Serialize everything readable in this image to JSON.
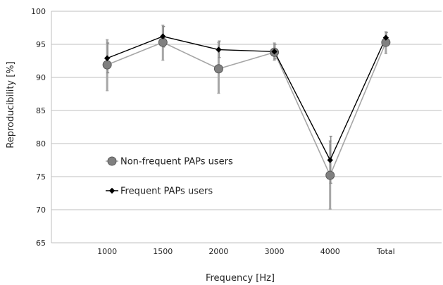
{
  "chart_data": {
    "type": "line",
    "xlabel": "Frequency [Hz]",
    "ylabel": "Reproducibility  [%]",
    "ylim": [
      65,
      100
    ],
    "yticks": [
      65,
      70,
      75,
      80,
      85,
      90,
      95,
      100
    ],
    "categories": [
      "1000",
      "1500",
      "2000",
      "3000",
      "4000",
      "Total"
    ],
    "grid": "horizontal",
    "legend_position": "left-middle",
    "series": [
      {
        "name": "Non-frequent PAPs users",
        "values": [
          91.9,
          95.3,
          91.3,
          93.8,
          75.2,
          95.3
        ],
        "err_low": [
          88.0,
          92.6,
          87.6,
          92.6,
          70.1,
          93.6
        ],
        "err_high": [
          95.7,
          97.9,
          95.3,
          95.2,
          80.4,
          96.9
        ],
        "color": "#a6a6a6",
        "marker": "circle"
      },
      {
        "name": "Frequent PAPs users",
        "values": [
          92.9,
          96.2,
          94.2,
          93.9,
          77.5,
          96.0
        ],
        "err_low": [
          90.7,
          94.6,
          93.0,
          92.8,
          74.0,
          95.1
        ],
        "err_high": [
          95.2,
          97.7,
          95.5,
          95.0,
          81.1,
          96.8
        ],
        "color": "#000000",
        "marker": "diamond"
      }
    ]
  }
}
